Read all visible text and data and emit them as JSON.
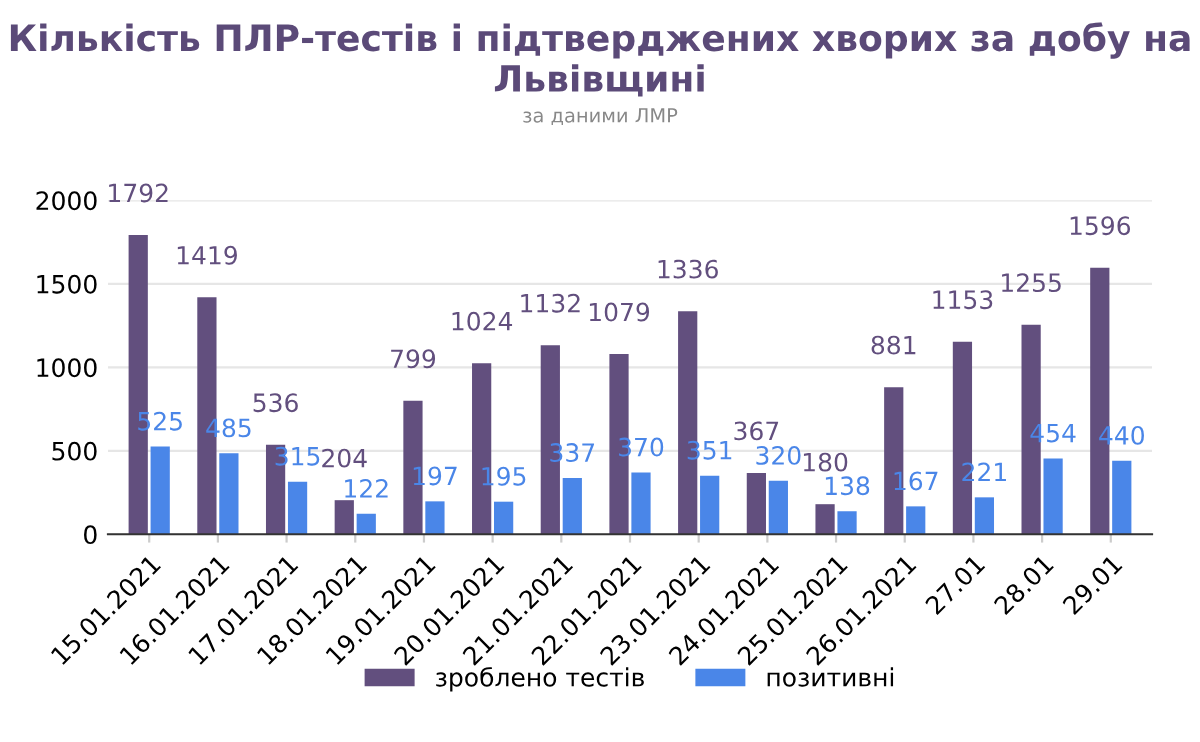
{
  "chart_data": {
    "type": "bar",
    "title": "Кількість ПЛР-тестів і підтверджених хворих за добу на Львівщині",
    "subtitle": "за даними ЛМР",
    "categories": [
      "15.01.2021",
      "16.01.2021",
      "17.01.2021",
      "18.01.2021",
      "19.01.2021",
      "20.01.2021",
      "21.01.2021",
      "22.01.2021",
      "23.01.2021",
      "24.01.2021",
      "25.01.2021",
      "26.01.2021",
      "27.01",
      "28.01",
      "29.01"
    ],
    "series": [
      {
        "name": "зроблено тестів",
        "color": "#624f7e",
        "values": [
          1792,
          1419,
          536,
          204,
          799,
          1024,
          1132,
          1079,
          1336,
          367,
          180,
          881,
          1153,
          1255,
          1596
        ]
      },
      {
        "name": "позитивні",
        "color": "#4a86e8",
        "values": [
          525,
          485,
          315,
          122,
          197,
          195,
          337,
          370,
          351,
          320,
          138,
          167,
          221,
          454,
          440
        ]
      }
    ],
    "ylim": [
      0,
      2000
    ],
    "yticks": [
      0,
      500,
      1000,
      1500,
      2000
    ],
    "grid": "y",
    "legend": "bottom",
    "data_labels": true
  }
}
